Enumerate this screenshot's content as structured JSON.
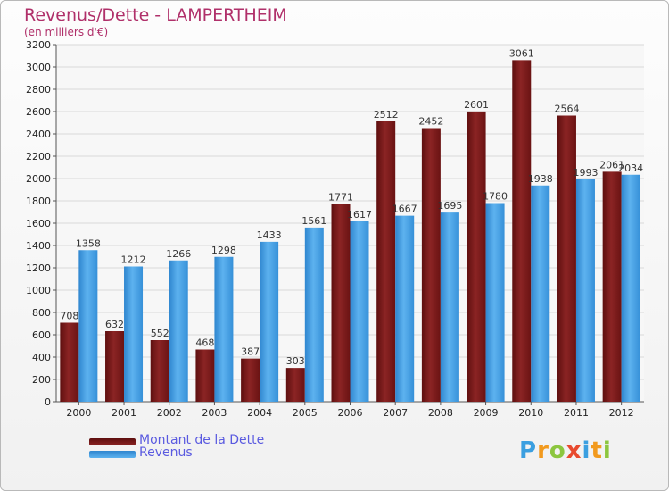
{
  "chart_data": {
    "type": "bar",
    "title": "Revenus/Dette - LAMPERTHEIM",
    "subtitle": "(en milliers d'€)",
    "categories": [
      "2000",
      "2001",
      "2002",
      "2003",
      "2004",
      "2005",
      "2006",
      "2007",
      "2008",
      "2009",
      "2010",
      "2011",
      "2012"
    ],
    "series": [
      {
        "name": "Montant de la Dette",
        "color": "#8b1a1a",
        "values": [
          708,
          632,
          552,
          468,
          387,
          303,
          1771,
          2512,
          2452,
          2601,
          3061,
          2564,
          2061
        ]
      },
      {
        "name": "Revenus",
        "color": "#4aa3e8",
        "values": [
          1358,
          1212,
          1266,
          1298,
          1433,
          1561,
          1617,
          1667,
          1695,
          1780,
          1938,
          1993,
          2034
        ]
      }
    ],
    "ylim": [
      0,
      3200
    ],
    "yticks": [
      0,
      200,
      400,
      600,
      800,
      1000,
      1200,
      1400,
      1600,
      1800,
      2000,
      2200,
      2400,
      2600,
      2800,
      3000,
      3200
    ],
    "grid": true,
    "legend_position": "bottom-left"
  },
  "logo": {
    "letters": [
      "P",
      "r",
      "o",
      "x",
      "i",
      "t",
      "i"
    ],
    "colors": [
      "#3b9fe0",
      "#f29a1e",
      "#8cc63f",
      "#e84a2e",
      "#3b9fe0",
      "#f29a1e",
      "#8cc63f"
    ]
  }
}
